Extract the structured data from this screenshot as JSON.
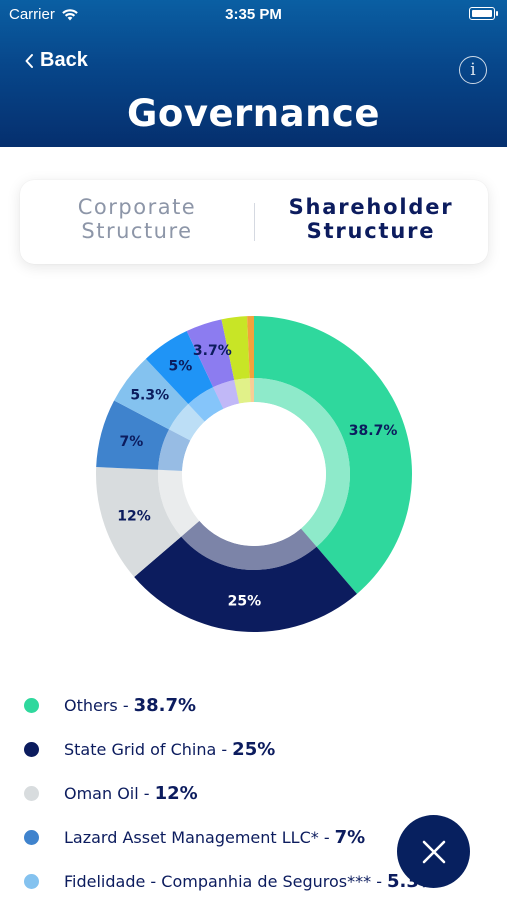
{
  "status_bar": {
    "carrier": "Carrier",
    "time": "3:35 PM"
  },
  "nav": {
    "back_label": "Back",
    "title": "Governance",
    "info_icon": "info-icon"
  },
  "segments": {
    "left_line1": "Corporate",
    "left_line2": "Structure",
    "right_line1": "Shareholder",
    "right_line2": "Structure",
    "selected": "right"
  },
  "chart_data": {
    "type": "donut",
    "slices": [
      {
        "name": "Others",
        "value": 38.7,
        "label": "38.7%",
        "color": "#2fd89d",
        "label_color": "#0c1c5e"
      },
      {
        "name": "State Grid of China",
        "value": 25,
        "label": "25%",
        "color": "#0c1c5e",
        "label_color": "#ffffff"
      },
      {
        "name": "Oman Oil",
        "value": 12,
        "label": "12%",
        "color": "#d8dcde",
        "label_color": "#0c1c5e"
      },
      {
        "name": "Lazard Asset Management LLC*",
        "value": 7,
        "label": "7%",
        "color": "#3f83cd",
        "label_color": "#0c1c5e"
      },
      {
        "name": "Fidelidade - Companhia de Seguros***",
        "value": 5.3,
        "label": "5.3%",
        "color": "#84c2ef",
        "label_color": "#0c1c5e"
      },
      {
        "name": "",
        "value": 5,
        "label": "5%",
        "color": "#1f94f6",
        "label_color": "#0c1c5e"
      },
      {
        "name": "",
        "value": 3.7,
        "label": "3.7%",
        "color": "#8c7cf0",
        "label_color": "#0c1c5e"
      },
      {
        "name": "",
        "value": 2.6,
        "label": "",
        "color": "#c8e526",
        "label_color": "#0c1c5e"
      },
      {
        "name": "",
        "value": 0.7,
        "label": "",
        "color": "#f2a23c",
        "label_color": "#0c1c5e"
      }
    ]
  },
  "legend": [
    {
      "name": "Others - ",
      "pct": "38.7%",
      "color": "#2fd89d"
    },
    {
      "name": "State Grid of China - ",
      "pct": "25%",
      "color": "#0c1c5e"
    },
    {
      "name": "Oman Oil - ",
      "pct": "12%",
      "color": "#d8dcde"
    },
    {
      "name": "Lazard Asset Management LLC* - ",
      "pct": "7%",
      "color": "#3f83cd"
    },
    {
      "name": "Fidelidade - Companhia de Seguros*** - ",
      "pct": "5.3%",
      "color": "#84c2ef"
    }
  ],
  "fab": {
    "icon": "close-icon",
    "color": "#07205f"
  }
}
